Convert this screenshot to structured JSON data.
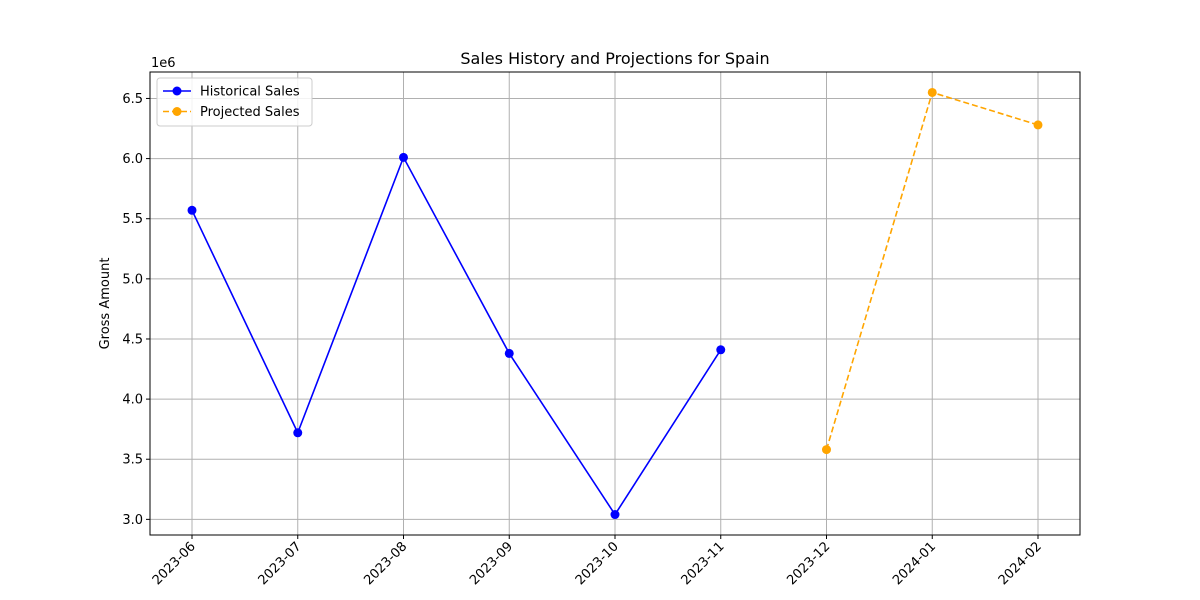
{
  "chart_data": {
    "type": "line",
    "title": "Sales History and Projections for Spain",
    "xlabel": "",
    "ylabel": "Gross Amount",
    "y_offset_label": "1e6",
    "categories": [
      "2023-06",
      "2023-07",
      "2023-08",
      "2023-09",
      "2023-10",
      "2023-11",
      "2023-12",
      "2024-01",
      "2024-02"
    ],
    "ylim": [
      2.87,
      6.72
    ],
    "yticks": [
      3.0,
      3.5,
      4.0,
      4.5,
      5.0,
      5.5,
      6.0,
      6.5
    ],
    "ytick_labels": [
      "3.0",
      "3.5",
      "4.0",
      "4.5",
      "5.0",
      "5.5",
      "6.0",
      "6.5"
    ],
    "grid": true,
    "legend_position": "top-left",
    "series": [
      {
        "name": "Historical Sales",
        "color": "#0000ff",
        "style": "solid",
        "marker": "circle",
        "x": [
          "2023-06",
          "2023-07",
          "2023-08",
          "2023-09",
          "2023-10",
          "2023-11"
        ],
        "values": [
          5.57,
          3.72,
          6.01,
          4.38,
          3.04,
          4.41
        ]
      },
      {
        "name": "Projected Sales",
        "color": "#ffa500",
        "style": "dashed",
        "marker": "circle",
        "x": [
          "2023-12",
          "2024-01",
          "2024-02"
        ],
        "values": [
          3.58,
          6.55,
          6.28
        ]
      }
    ]
  }
}
